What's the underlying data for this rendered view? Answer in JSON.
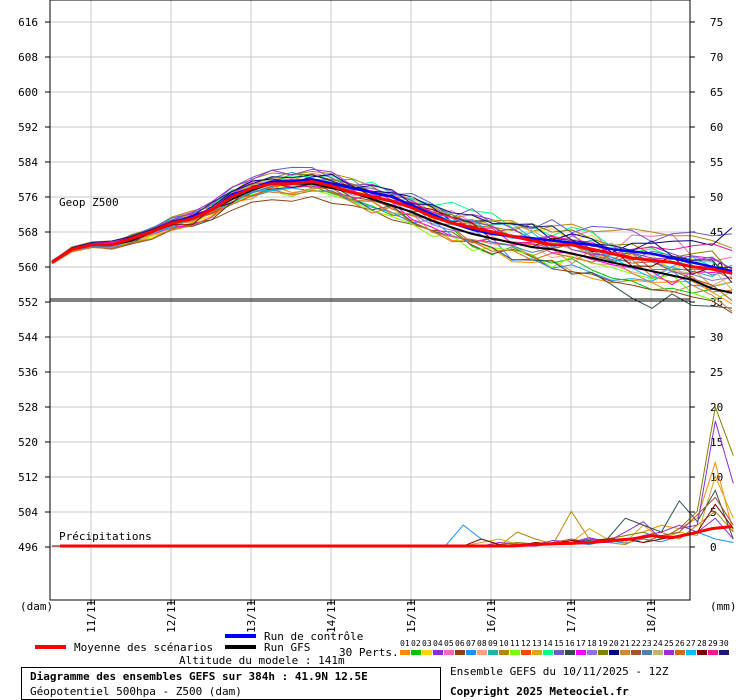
{
  "chart_data": {
    "type": "line",
    "title": "Diagramme des ensembles GEFS sur 384h : 41.9N 12.5E",
    "subtitle": "Géopotentiel 500hpa - Z500 (dam)",
    "run_label": "Ensemble GEFS du 10/11/2025 - 12Z",
    "copyright": "Copyright 2025 Meteociel.fr",
    "altitude": "Altitude du modele : 141m",
    "panel_top_label": "Geop Z500",
    "panel_bottom_label": "Précipitations",
    "left_unit": "(dam)",
    "right_unit": "(mm)",
    "left_ticks": [
      616,
      608,
      600,
      592,
      584,
      576,
      568,
      560,
      552,
      544,
      536,
      528,
      520,
      512,
      504,
      496
    ],
    "right_ticks": [
      75,
      70,
      65,
      60,
      55,
      50,
      45,
      40,
      35,
      30,
      25,
      20,
      15,
      10,
      5,
      0
    ],
    "x_ticks": [
      "11/11",
      "12/11",
      "13/11",
      "14/11",
      "15/11",
      "16/11",
      "17/11",
      "18/11"
    ],
    "ylim_geop": [
      552,
      616
    ],
    "ylim_precip": [
      0,
      75
    ],
    "legend": {
      "mean": "Moyenne des scénarios",
      "control": "Run de contrôle",
      "gfs": "Run GFS",
      "perts": "30 Perts."
    },
    "members": [
      "01",
      "02",
      "03",
      "04",
      "05",
      "06",
      "07",
      "08",
      "09",
      "10",
      "11",
      "12",
      "13",
      "14",
      "15",
      "16",
      "17",
      "18",
      "19",
      "20",
      "21",
      "22",
      "23",
      "24",
      "25",
      "26",
      "27",
      "28",
      "29",
      "30"
    ],
    "member_colors": [
      "#ff8c00",
      "#00c000",
      "#ffd700",
      "#8a2be2",
      "#ff69b4",
      "#8b4513",
      "#1e90ff",
      "#ffa07a",
      "#20b2aa",
      "#b8860b",
      "#7cfc00",
      "#ff4500",
      "#daa520",
      "#00ff7f",
      "#6a5acd",
      "#2f4f4f",
      "#ff00ff",
      "#9370db",
      "#808000",
      "#000080",
      "#cd853f",
      "#a0522d",
      "#4682b4",
      "#bdb76b",
      "#9932cc",
      "#d2691e",
      "#00bfff",
      "#800000",
      "#ff1493",
      "#191970"
    ],
    "geop_mean": [
      [
        0,
        561
      ],
      [
        6,
        564
      ],
      [
        12,
        565
      ],
      [
        18,
        565
      ],
      [
        24,
        566.5
      ],
      [
        30,
        568
      ],
      [
        36,
        570
      ],
      [
        42,
        571
      ],
      [
        48,
        573
      ],
      [
        54,
        576
      ],
      [
        60,
        578
      ],
      [
        66,
        579
      ],
      [
        72,
        579
      ],
      [
        78,
        579.5
      ],
      [
        84,
        578.5
      ],
      [
        90,
        577
      ],
      [
        96,
        576
      ],
      [
        102,
        575
      ],
      [
        108,
        573.5
      ],
      [
        114,
        571.5
      ],
      [
        120,
        570
      ],
      [
        126,
        569
      ],
      [
        132,
        568
      ],
      [
        138,
        567
      ],
      [
        144,
        566
      ],
      [
        150,
        565
      ],
      [
        156,
        565
      ],
      [
        162,
        564
      ],
      [
        168,
        563
      ],
      [
        174,
        562
      ],
      [
        180,
        561.5
      ],
      [
        186,
        561
      ],
      [
        192,
        560
      ],
      [
        198,
        559.5
      ],
      [
        204,
        558.5
      ]
    ],
    "geop_control": [
      [
        0,
        561
      ],
      [
        6,
        564
      ],
      [
        12,
        565
      ],
      [
        18,
        565
      ],
      [
        24,
        566.5
      ],
      [
        30,
        568
      ],
      [
        36,
        570
      ],
      [
        42,
        571.5
      ],
      [
        48,
        573
      ],
      [
        54,
        576.5
      ],
      [
        60,
        578
      ],
      [
        66,
        579.5
      ],
      [
        72,
        579.5
      ],
      [
        78,
        580
      ],
      [
        84,
        579
      ],
      [
        90,
        578
      ],
      [
        96,
        577
      ],
      [
        102,
        576
      ],
      [
        108,
        574
      ],
      [
        114,
        572
      ],
      [
        120,
        570
      ],
      [
        126,
        568.5
      ],
      [
        132,
        567.5
      ],
      [
        138,
        567
      ],
      [
        144,
        566.5
      ],
      [
        150,
        566
      ],
      [
        156,
        565.5
      ],
      [
        162,
        565
      ],
      [
        168,
        564
      ],
      [
        174,
        563.5
      ],
      [
        180,
        563
      ],
      [
        186,
        562
      ],
      [
        192,
        561
      ],
      [
        198,
        560
      ],
      [
        204,
        559
      ]
    ],
    "geop_gfs": [
      [
        0,
        561
      ],
      [
        6,
        564
      ],
      [
        12,
        565
      ],
      [
        18,
        565
      ],
      [
        24,
        566
      ],
      [
        30,
        568
      ],
      [
        36,
        570
      ],
      [
        42,
        571
      ],
      [
        48,
        573
      ],
      [
        54,
        575.5
      ],
      [
        60,
        577.5
      ],
      [
        66,
        579
      ],
      [
        72,
        579
      ],
      [
        78,
        579
      ],
      [
        84,
        578
      ],
      [
        90,
        577
      ],
      [
        96,
        575.5
      ],
      [
        102,
        574
      ],
      [
        108,
        572.5
      ],
      [
        114,
        570.5
      ],
      [
        120,
        569
      ],
      [
        126,
        567.5
      ],
      [
        132,
        566.5
      ],
      [
        138,
        565.5
      ],
      [
        144,
        564.5
      ],
      [
        150,
        564
      ],
      [
        156,
        563
      ],
      [
        162,
        562
      ],
      [
        168,
        561
      ],
      [
        174,
        560
      ],
      [
        180,
        559
      ],
      [
        186,
        558
      ],
      [
        192,
        557
      ],
      [
        198,
        555
      ],
      [
        204,
        554
      ]
    ],
    "precip_mean": [
      [
        0,
        0
      ],
      [
        24,
        0
      ],
      [
        48,
        0
      ],
      [
        72,
        0
      ],
      [
        96,
        0
      ],
      [
        120,
        0
      ],
      [
        138,
        0
      ],
      [
        144,
        0.2
      ],
      [
        150,
        0.3
      ],
      [
        156,
        0.4
      ],
      [
        162,
        0.5
      ],
      [
        168,
        0.8
      ],
      [
        174,
        1
      ],
      [
        180,
        1.5
      ],
      [
        186,
        1.2
      ],
      [
        192,
        1.8
      ],
      [
        198,
        2.5
      ],
      [
        204,
        2.8
      ]
    ],
    "precip_members": [
      [
        0.0,
        0.1,
        0.2,
        0.0,
        0.5,
        0.3,
        0.2,
        0.6,
        1.0,
        1.5,
        2.0,
        3.0,
        2.5,
        4.0,
        12.0,
        2.0
      ],
      [
        0.0,
        0.0,
        0.5,
        0.3,
        0.2,
        0.8,
        0.5,
        1.2,
        0.6,
        2.0,
        3.5,
        1.0,
        2.5,
        3.0,
        18.0,
        9.0
      ],
      [
        3.0,
        1.0,
        0.2,
        0.0,
        0.0,
        0.3,
        0.5,
        0.2,
        0.8,
        0.4,
        1.0,
        0.6,
        1.5,
        2.0,
        1.0,
        0.5
      ],
      [
        0.0,
        0.0,
        0.0,
        2.0,
        1.0,
        0.3,
        5.0,
        1.0,
        0.5,
        0.2,
        1.5,
        2.0,
        1.0,
        3.0,
        5.0,
        2.0
      ],
      [
        0.0,
        0.5,
        1.0,
        0.2,
        0.3,
        0.2,
        0.5,
        2.5,
        1.0,
        0.5,
        3.0,
        1.0,
        2.0,
        1.5,
        10.0,
        4.0
      ],
      [
        0.0,
        0.0,
        0.0,
        0.0,
        0.2,
        0.3,
        0.5,
        0.8,
        1.0,
        4.0,
        3.0,
        2.0,
        6.5,
        3.5,
        8.0,
        1.0
      ],
      [
        0.0,
        0.0,
        0.2,
        0.5,
        0.3,
        0.2,
        0.5,
        0.5,
        1.0,
        1.5,
        2.0,
        1.0,
        2.5,
        5.0,
        20.0,
        13.0
      ],
      [
        0.0,
        0.0,
        0.0,
        0.3,
        0.2,
        0.5,
        1.0,
        0.5,
        0.5,
        1.0,
        0.5,
        1.5,
        2.0,
        4.5,
        7.0,
        3.0
      ],
      [
        0.0,
        0.0,
        0.0,
        0.0,
        0.0,
        0.5,
        0.5,
        1.0,
        0.5,
        0.8,
        1.5,
        2.0,
        3.0,
        2.0,
        4.0,
        1.0
      ],
      [
        0.0,
        1.0,
        0.2,
        0.0,
        0.5,
        0.3,
        0.8,
        0.5,
        1.0,
        1.0,
        0.5,
        1.0,
        1.5,
        2.0,
        6.0,
        2.5
      ]
    ]
  }
}
